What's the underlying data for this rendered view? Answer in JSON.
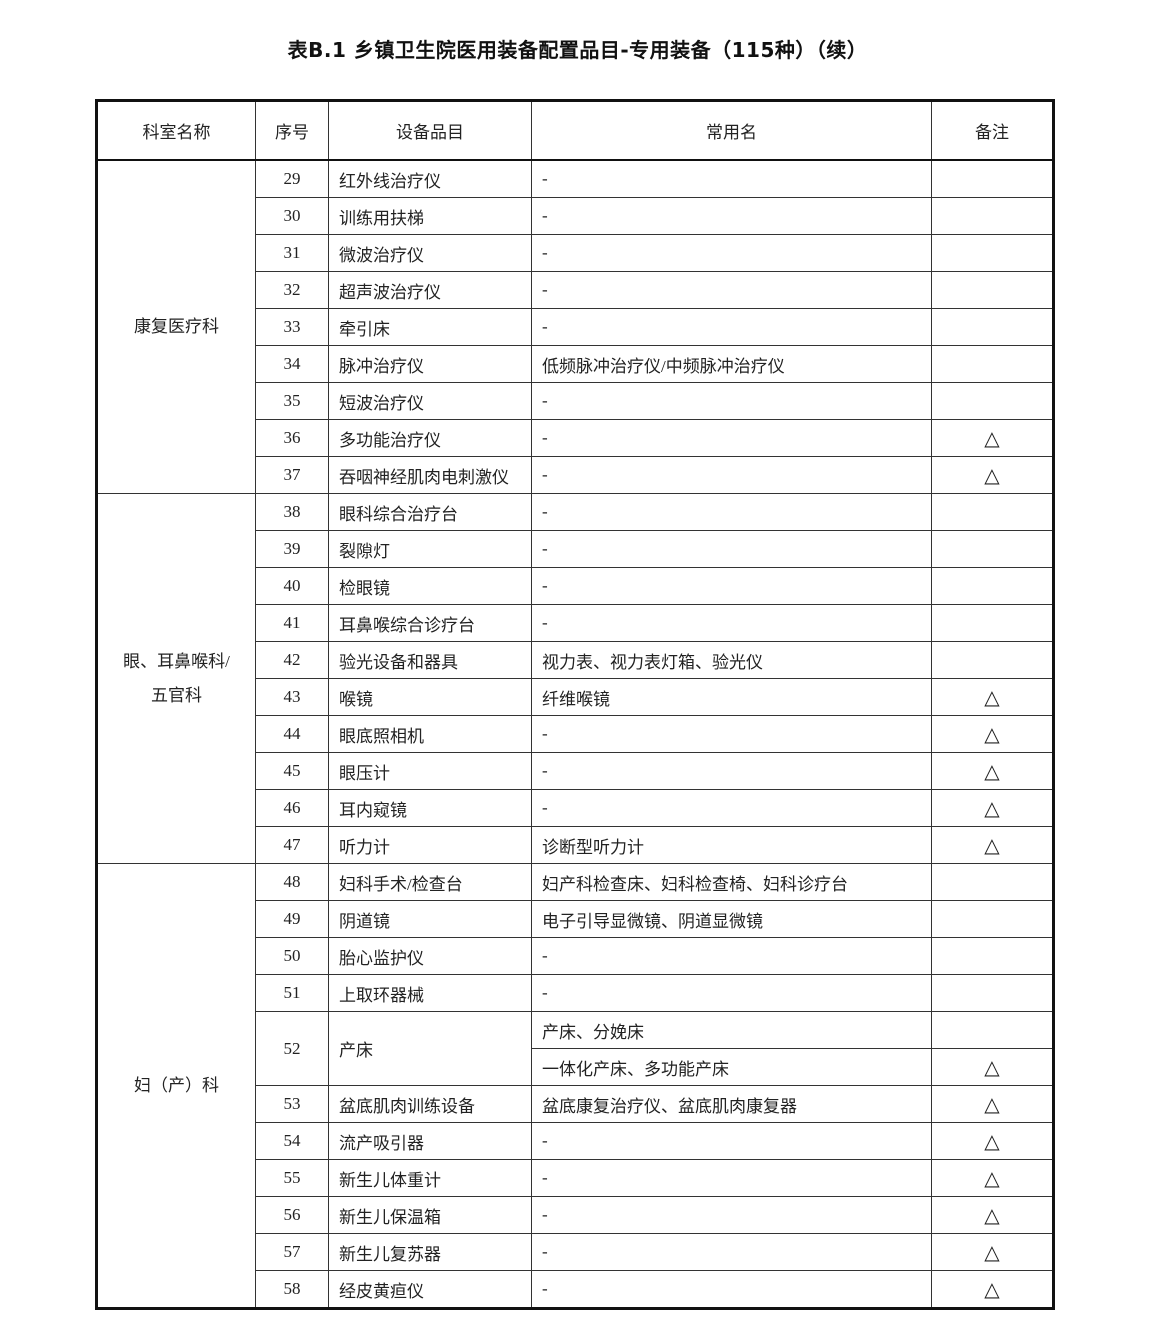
{
  "title": "表B.1 乡镇卫生院医用装备配置品目-专用装备（115种）（续）",
  "headers": [
    "科室名称",
    "序号",
    "设备品目",
    "常用名",
    "备注"
  ],
  "groups": [
    {
      "dept": [
        "康复医疗科"
      ],
      "rows": [
        {
          "no": "29",
          "item": "红外线治疗仪",
          "common": [
            "-"
          ],
          "note": [
            ""
          ]
        },
        {
          "no": "30",
          "item": "训练用扶梯",
          "common": [
            "-"
          ],
          "note": [
            ""
          ]
        },
        {
          "no": "31",
          "item": "微波治疗仪",
          "common": [
            "-"
          ],
          "note": [
            ""
          ]
        },
        {
          "no": "32",
          "item": "超声波治疗仪",
          "common": [
            "-"
          ],
          "note": [
            ""
          ]
        },
        {
          "no": "33",
          "item": "牵引床",
          "common": [
            "-"
          ],
          "note": [
            ""
          ]
        },
        {
          "no": "34",
          "item": "脉冲治疗仪",
          "common": [
            "低频脉冲治疗仪/中频脉冲治疗仪"
          ],
          "note": [
            ""
          ]
        },
        {
          "no": "35",
          "item": "短波治疗仪",
          "common": [
            "-"
          ],
          "note": [
            ""
          ]
        },
        {
          "no": "36",
          "item": "多功能治疗仪",
          "common": [
            "-"
          ],
          "note": [
            "△"
          ]
        },
        {
          "no": "37",
          "item": "吞咽神经肌肉电刺激仪",
          "common": [
            "-"
          ],
          "note": [
            "△"
          ]
        }
      ]
    },
    {
      "dept": [
        "眼、耳鼻喉科/",
        "五官科"
      ],
      "rows": [
        {
          "no": "38",
          "item": "眼科综合治疗台",
          "common": [
            "-"
          ],
          "note": [
            ""
          ]
        },
        {
          "no": "39",
          "item": "裂隙灯",
          "common": [
            "-"
          ],
          "note": [
            ""
          ]
        },
        {
          "no": "40",
          "item": "检眼镜",
          "common": [
            "-"
          ],
          "note": [
            ""
          ]
        },
        {
          "no": "41",
          "item": "耳鼻喉综合诊疗台",
          "common": [
            "-"
          ],
          "note": [
            ""
          ]
        },
        {
          "no": "42",
          "item": "验光设备和器具",
          "common": [
            "视力表、视力表灯箱、验光仪"
          ],
          "note": [
            ""
          ]
        },
        {
          "no": "43",
          "item": "喉镜",
          "common": [
            "纤维喉镜"
          ],
          "note": [
            "△"
          ]
        },
        {
          "no": "44",
          "item": "眼底照相机",
          "common": [
            "-"
          ],
          "note": [
            "△"
          ]
        },
        {
          "no": "45",
          "item": "眼压计",
          "common": [
            "-"
          ],
          "note": [
            "△"
          ]
        },
        {
          "no": "46",
          "item": "耳内窥镜",
          "common": [
            "-"
          ],
          "note": [
            "△"
          ]
        },
        {
          "no": "47",
          "item": "听力计",
          "common": [
            "诊断型听力计"
          ],
          "note": [
            "△"
          ]
        }
      ]
    },
    {
      "dept": [
        "妇（产）科"
      ],
      "rows": [
        {
          "no": "48",
          "item": "妇科手术/检查台",
          "common": [
            "妇产科检查床、妇科检查椅、妇科诊疗台"
          ],
          "note": [
            ""
          ]
        },
        {
          "no": "49",
          "item": "阴道镜",
          "common": [
            "电子引导显微镜、阴道显微镜"
          ],
          "note": [
            ""
          ]
        },
        {
          "no": "50",
          "item": "胎心监护仪",
          "common": [
            "-"
          ],
          "note": [
            ""
          ]
        },
        {
          "no": "51",
          "item": "上取环器械",
          "common": [
            "-"
          ],
          "note": [
            ""
          ]
        },
        {
          "no": "52",
          "item": "产床",
          "common": [
            "产床、分娩床",
            "一体化产床、多功能产床"
          ],
          "note": [
            "",
            "△"
          ]
        },
        {
          "no": "53",
          "item": "盆底肌肉训练设备",
          "common": [
            "盆底康复治疗仪、盆底肌肉康复器"
          ],
          "note": [
            "△"
          ]
        },
        {
          "no": "54",
          "item": "流产吸引器",
          "common": [
            "-"
          ],
          "note": [
            "△"
          ]
        },
        {
          "no": "55",
          "item": "新生儿体重计",
          "common": [
            "-"
          ],
          "note": [
            "△"
          ]
        },
        {
          "no": "56",
          "item": "新生儿保温箱",
          "common": [
            "-"
          ],
          "note": [
            "△"
          ]
        },
        {
          "no": "57",
          "item": "新生儿复苏器",
          "common": [
            "-"
          ],
          "note": [
            "△"
          ]
        },
        {
          "no": "58",
          "item": "经皮黄疸仪",
          "common": [
            "-"
          ],
          "note": [
            "△"
          ]
        }
      ]
    }
  ]
}
